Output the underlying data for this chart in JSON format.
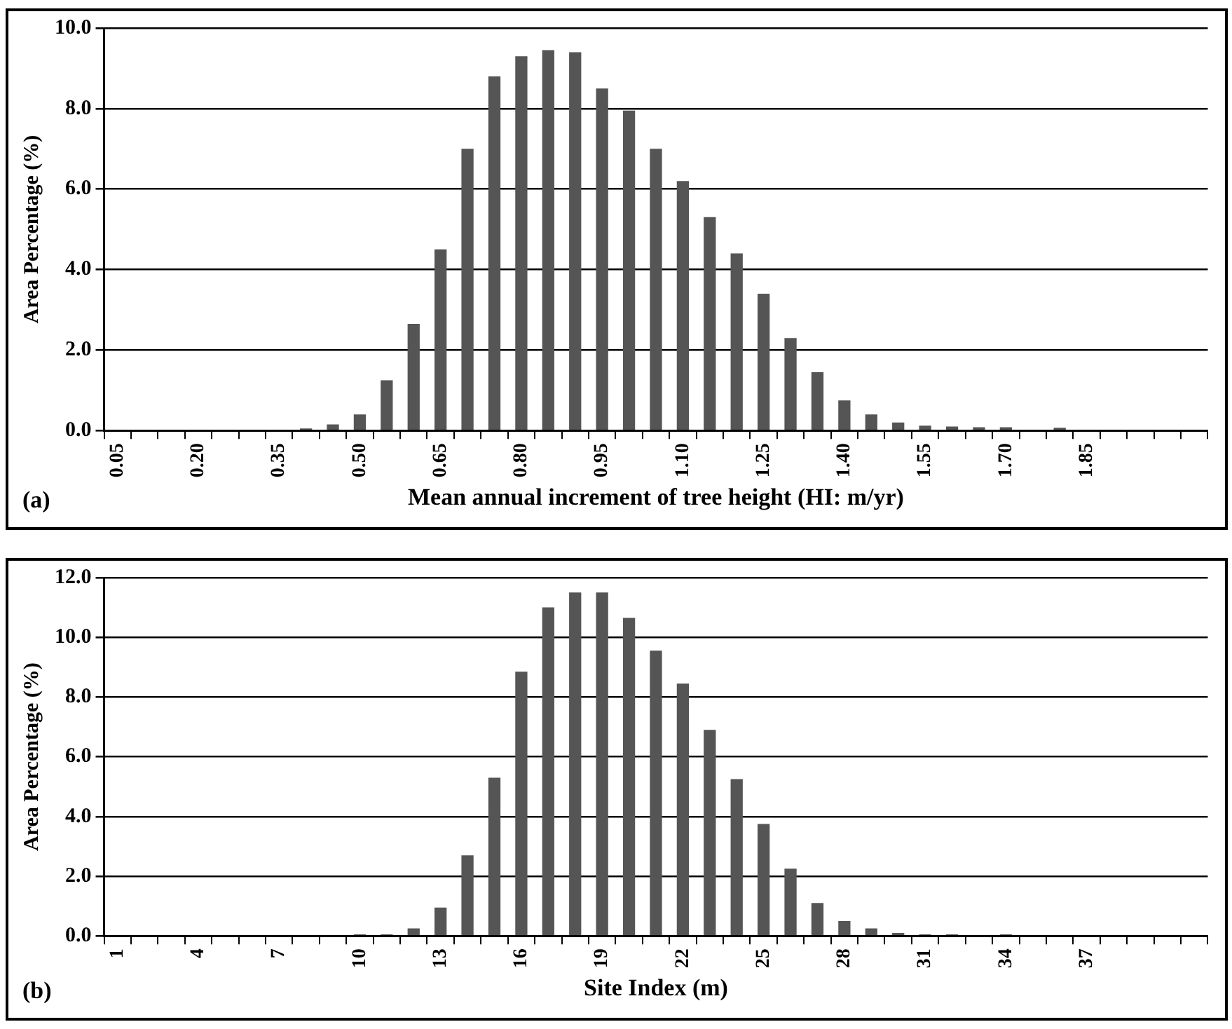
{
  "chart_data": [
    {
      "type": "bar",
      "xlabel": "Mean annual increment of tree height (HI: m/yr)",
      "ylabel": "Area Percentage (%)",
      "annotations": [
        "(a)"
      ],
      "categories": [
        "0.05",
        null,
        null,
        "0.20",
        null,
        null,
        "0.35",
        null,
        null,
        "0.50",
        null,
        null,
        "0.65",
        null,
        null,
        "0.80",
        null,
        null,
        "0.95",
        null,
        null,
        "1.10",
        null,
        null,
        "1.25",
        null,
        null,
        "1.40",
        null,
        null,
        "1.55",
        null,
        null,
        "1.70",
        null,
        null,
        "1.85",
        null,
        null,
        null,
        null
      ],
      "values": [
        0,
        0,
        0,
        0,
        0,
        0,
        0,
        0.05,
        0.15,
        0.4,
        1.25,
        2.65,
        4.5,
        7.0,
        8.8,
        9.3,
        9.45,
        9.4,
        8.5,
        7.95,
        7.0,
        6.2,
        5.3,
        4.4,
        3.4,
        2.3,
        1.45,
        0.75,
        0.4,
        0.2,
        0.12,
        0.1,
        0.08,
        0.08,
        0,
        0.07,
        0,
        0,
        0,
        0,
        0
      ],
      "color": "#555555",
      "ylim": [
        0,
        10
      ],
      "yticks": [
        {
          "value": 0,
          "label": "0.0"
        },
        {
          "value": 2,
          "label": "2.0"
        },
        {
          "value": 4,
          "label": "4.0"
        },
        {
          "value": 6,
          "label": "6.0"
        },
        {
          "value": 8,
          "label": "8.0"
        },
        {
          "value": 10,
          "label": "10.0"
        }
      ],
      "grid": "y"
    },
    {
      "type": "bar",
      "xlabel": "Site Index (m)",
      "ylabel": "Area Percentage (%)",
      "annotations": [
        "(b)"
      ],
      "categories": [
        "1",
        null,
        null,
        "4",
        null,
        null,
        "7",
        null,
        null,
        "10",
        null,
        null,
        "13",
        null,
        null,
        "16",
        null,
        null,
        "19",
        null,
        null,
        "22",
        null,
        null,
        "25",
        null,
        null,
        "28",
        null,
        null,
        "31",
        null,
        null,
        "34",
        null,
        null,
        "37",
        null,
        null,
        null,
        null
      ],
      "values": [
        0,
        0,
        0,
        0,
        0,
        0,
        0,
        0,
        0,
        0.05,
        0.05,
        0.25,
        0.95,
        2.7,
        5.3,
        8.85,
        11.0,
        11.5,
        11.5,
        10.65,
        9.55,
        8.45,
        6.9,
        5.25,
        3.75,
        2.25,
        1.1,
        0.5,
        0.25,
        0.1,
        0.05,
        0.05,
        0,
        0.05,
        0,
        0,
        0,
        0,
        0,
        0,
        0
      ],
      "color": "#555555",
      "ylim": [
        0,
        12
      ],
      "yticks": [
        {
          "value": 0,
          "label": "0.0"
        },
        {
          "value": 2,
          "label": "2.0"
        },
        {
          "value": 4,
          "label": "4.0"
        },
        {
          "value": 6,
          "label": "6.0"
        },
        {
          "value": 8,
          "label": "8.0"
        },
        {
          "value": 10,
          "label": "10.0"
        },
        {
          "value": 12,
          "label": "12.0"
        }
      ],
      "grid": "y"
    }
  ]
}
